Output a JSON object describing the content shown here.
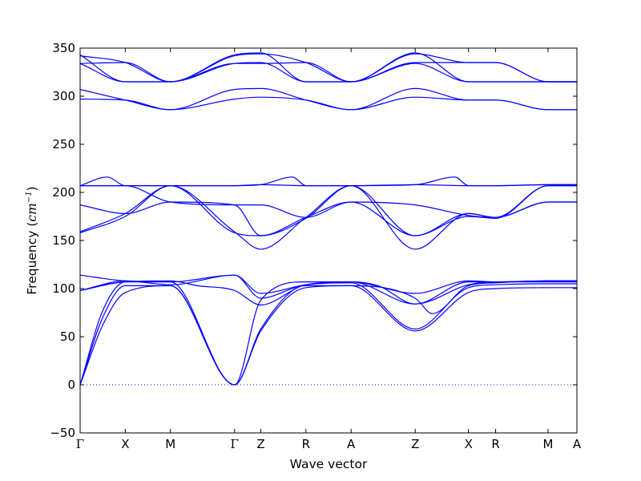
{
  "chart_data": {
    "type": "line",
    "xlabel": "Wave vector",
    "ylabel": "Frequency (cm⁻¹)",
    "ylabel_parts": {
      "main": "Frequency (",
      "unit": "cm",
      "exp": "−1",
      "close": ")"
    },
    "ylim": [
      -50,
      350
    ],
    "yticks": [
      -50,
      0,
      50,
      100,
      150,
      200,
      250,
      300,
      350
    ],
    "x_high_symmetry_points": [
      {
        "label": "Γ",
        "x": 0.0
      },
      {
        "label": "X",
        "x": 0.5
      },
      {
        "label": "M",
        "x": 1.0
      },
      {
        "label": "Γ",
        "x": 1.71
      },
      {
        "label": "Z",
        "x": 2.0
      },
      {
        "label": "R",
        "x": 2.5
      },
      {
        "label": "A",
        "x": 3.0
      },
      {
        "label": "Z",
        "x": 3.71
      },
      {
        "label": "X",
        "x": 4.3
      },
      {
        "label": "R",
        "x": 4.6
      },
      {
        "label": "M",
        "x": 5.18
      },
      {
        "label": "A",
        "x": 5.5
      }
    ],
    "zero_line": {
      "y": 0,
      "style": "dotted",
      "color": "#0000ff"
    },
    "line_color": "#0000ff",
    "series": [
      {
        "x": [
          0.0,
          0.25,
          0.5,
          1.0,
          1.71,
          2.0,
          2.5,
          3.0,
          3.71,
          4.3,
          4.6,
          5.18,
          5.5
        ],
        "y": [
          0,
          62,
          96,
          103,
          0,
          56,
          101,
          103,
          56,
          96,
          100,
          101,
          101
        ]
      },
      {
        "x": [
          0.0,
          0.25,
          0.5,
          1.0,
          1.71,
          2.0,
          2.5,
          3.0,
          3.71,
          4.3,
          4.6,
          5.18,
          5.5
        ],
        "y": [
          0,
          70,
          103,
          103,
          0,
          58,
          104,
          106,
          58,
          101,
          104,
          105,
          105
        ]
      },
      {
        "x": [
          0.0,
          0.25,
          0.5,
          1.0,
          1.71,
          2.0,
          2.5,
          3.0,
          3.71,
          4.3,
          4.6,
          5.18,
          5.5
        ],
        "y": [
          0,
          77,
          107,
          107,
          0,
          88,
          107,
          107,
          84,
          104,
          107,
          107,
          107
        ]
      },
      {
        "x": [
          0.0,
          0.5,
          1.0,
          1.3,
          1.71,
          2.0,
          2.5,
          3.0,
          3.3,
          3.71,
          4.3,
          4.6,
          5.18,
          5.5
        ],
        "y": [
          98,
          107,
          108,
          103,
          98,
          83,
          104,
          107,
          103,
          84,
          107,
          107,
          108,
          108
        ]
      },
      {
        "x": [
          0.0,
          0.5,
          1.0,
          1.71,
          2.0,
          2.5,
          3.0,
          3.71,
          4.3,
          4.6,
          5.18,
          5.5
        ],
        "y": [
          114,
          108,
          107,
          114,
          95,
          104,
          107,
          95,
          108,
          107,
          108,
          108
        ]
      },
      {
        "x": [
          0.0,
          0.5,
          1.0,
          1.71,
          2.0,
          2.5,
          3.0,
          3.71,
          3.9,
          4.3,
          4.6,
          5.18,
          5.5
        ],
        "y": [
          98,
          108,
          104,
          114,
          90,
          103,
          103,
          90,
          74,
          103,
          106,
          108,
          108
        ]
      },
      {
        "x": [
          0.0,
          0.5,
          1.0,
          1.71,
          2.0,
          2.5,
          3.0,
          3.71,
          4.3,
          4.6,
          5.18,
          5.5
        ],
        "y": [
          158,
          175,
          207,
          158,
          155,
          173,
          207,
          155,
          175,
          173,
          207,
          207
        ]
      },
      {
        "x": [
          0.0,
          0.5,
          1.0,
          1.71,
          2.0,
          2.5,
          3.0,
          3.71,
          4.3,
          4.6,
          5.18,
          5.5
        ],
        "y": [
          159,
          178,
          207,
          159,
          141,
          174,
          207,
          141,
          178,
          174,
          207,
          207
        ]
      },
      {
        "x": [
          0.0,
          0.5,
          1.0,
          1.71,
          2.0,
          2.5,
          3.0,
          3.71,
          4.3,
          4.6,
          5.18,
          5.5
        ],
        "y": [
          187,
          178,
          190,
          187,
          155,
          174,
          190,
          155,
          178,
          174,
          190,
          190
        ]
      },
      {
        "x": [
          0.0,
          0.5,
          1.0,
          1.71,
          2.0,
          2.5,
          3.0,
          3.71,
          4.3,
          4.6,
          5.18,
          5.5
        ],
        "y": [
          207,
          207,
          190,
          187,
          187,
          174,
          190,
          187,
          176,
          174,
          190,
          190
        ]
      },
      {
        "x": [
          0.0,
          0.5,
          1.0,
          1.71,
          2.0,
          2.5,
          3.0,
          3.71,
          4.3,
          4.6,
          5.18,
          5.5
        ],
        "y": [
          207,
          207,
          207,
          207,
          208,
          207,
          207,
          208,
          207,
          207,
          208,
          208
        ]
      },
      {
        "x": [
          0.0,
          0.3,
          0.5,
          1.0,
          1.71,
          2.0,
          2.35,
          2.5,
          3.0,
          3.71,
          4.15,
          4.3,
          4.6,
          5.18,
          5.5
        ],
        "y": [
          207,
          216,
          207,
          207,
          207,
          208,
          216,
          207,
          207,
          208,
          216,
          207,
          207,
          208,
          208
        ]
      },
      {
        "x": [
          0.0,
          0.5,
          1.0,
          1.71,
          2.0,
          2.5,
          3.0,
          3.71,
          4.3,
          4.6,
          5.18,
          5.5
        ],
        "y": [
          297,
          296,
          286,
          297,
          299,
          296,
          286,
          299,
          296,
          296,
          286,
          286
        ]
      },
      {
        "x": [
          0.0,
          0.5,
          1.0,
          1.71,
          2.0,
          2.5,
          3.0,
          3.71,
          4.3,
          4.6,
          5.18,
          5.5
        ],
        "y": [
          307,
          296,
          286,
          307,
          308,
          296,
          286,
          308,
          296,
          296,
          286,
          286
        ]
      },
      {
        "x": [
          0.0,
          0.5,
          1.0,
          1.71,
          2.0,
          2.5,
          3.0,
          3.71,
          4.3,
          4.6,
          5.18,
          5.5
        ],
        "y": [
          334,
          315,
          315,
          334,
          335,
          315,
          315,
          335,
          335,
          335,
          315,
          315
        ]
      },
      {
        "x": [
          0.0,
          0.5,
          1.0,
          1.71,
          2.0,
          2.5,
          3.0,
          3.71,
          4.3,
          4.6,
          5.18,
          5.5
        ],
        "y": [
          334,
          335,
          315,
          334,
          334,
          335,
          315,
          334,
          315,
          315,
          315,
          315
        ]
      },
      {
        "x": [
          0.0,
          0.5,
          1.0,
          1.71,
          2.0,
          2.5,
          3.0,
          3.71,
          4.3,
          4.6,
          5.18,
          5.5
        ],
        "y": [
          342,
          335,
          315,
          342,
          344,
          335,
          315,
          344,
          335,
          335,
          315,
          315
        ]
      },
      {
        "x": [
          0.0,
          0.5,
          1.0,
          1.71,
          2.0,
          2.5,
          3.0,
          3.71,
          4.3,
          4.6,
          5.18,
          5.5
        ],
        "y": [
          343,
          315,
          315,
          343,
          345,
          315,
          315,
          345,
          315,
          315,
          315,
          315
        ]
      }
    ]
  }
}
